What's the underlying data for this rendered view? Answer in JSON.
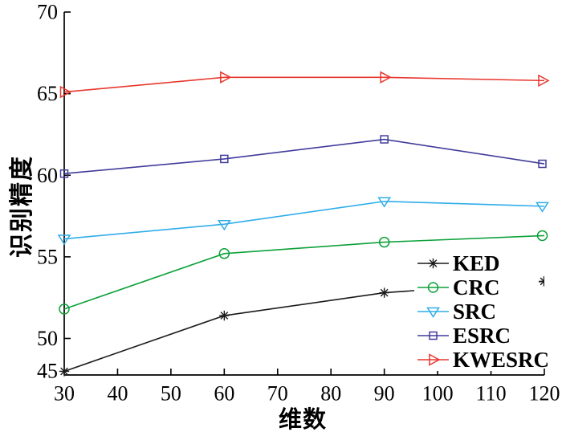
{
  "figure": {
    "background": "#ffffff"
  },
  "chart_data": {
    "type": "line",
    "title": "",
    "xlabel": "维数",
    "ylabel": "识别精度",
    "xlim": [
      30,
      120
    ],
    "ylim": [
      45,
      70
    ],
    "grid": false,
    "legend_position": "inside lower right, frameless white background",
    "x": [
      30,
      60,
      90,
      120
    ],
    "x_ticks": [
      30,
      40,
      50,
      60,
      70,
      80,
      90,
      100,
      110,
      120
    ],
    "y_ticks": [
      45,
      50,
      55,
      60,
      65,
      70
    ],
    "axis_color": "#000000",
    "series": [
      {
        "name": "KED",
        "color": "#1a1a1a",
        "marker": "asterisk",
        "values": [
          45.5,
          51.4,
          52.8,
          53.5
        ]
      },
      {
        "name": "CRC",
        "color": "#0da13a",
        "marker": "circle",
        "values": [
          51.8,
          55.2,
          55.9,
          56.3
        ]
      },
      {
        "name": "SRC",
        "color": "#2fadea",
        "marker": "triangle-down",
        "values": [
          56.1,
          57.0,
          58.4,
          58.1
        ]
      },
      {
        "name": "ESRC",
        "color": "#403c9b",
        "marker": "square",
        "values": [
          60.1,
          61.0,
          62.2,
          60.7
        ]
      },
      {
        "name": "KWESRC",
        "color": "#e8372f",
        "marker": "triangle-right",
        "values": [
          65.1,
          66.0,
          66.0,
          65.8
        ]
      }
    ]
  }
}
